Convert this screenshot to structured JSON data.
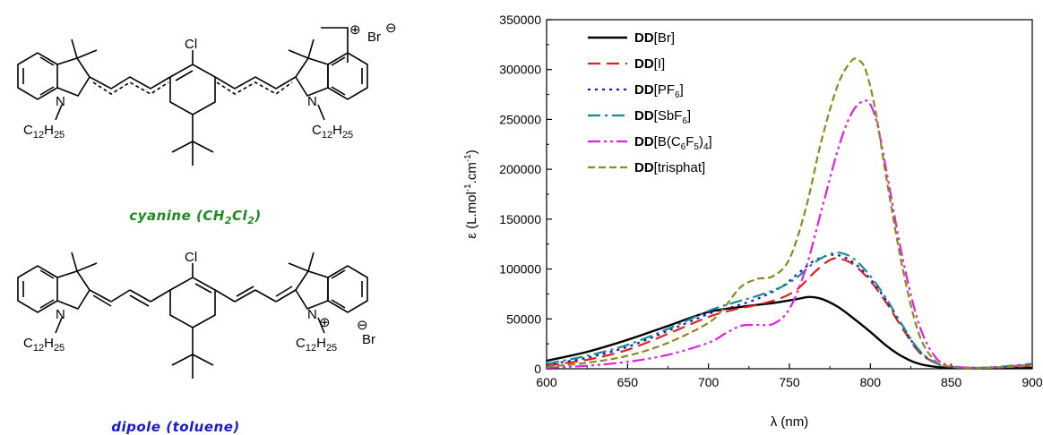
{
  "structures": {
    "cyanine": {
      "caption_pre": "cyanine (CH",
      "caption_sub1": "2",
      "caption_mid": "Cl",
      "caption_sub2": "2",
      "caption_post": ")",
      "caption_color": "#1e8a1e",
      "chloro": "Cl",
      "alkyl_c": "C",
      "alkyl_c_sub": "12",
      "alkyl_h": "H",
      "alkyl_h_sub": "25",
      "nitrogen": "N",
      "charge": "⊕",
      "counterion": "Br",
      "counterion_charge": "⊖"
    },
    "dipole": {
      "caption": "dipole (toluene)",
      "caption_color": "#1a1ad0",
      "chloro": "Cl",
      "alkyl_c": "C",
      "alkyl_c_sub": "12",
      "alkyl_h": "H",
      "alkyl_h_sub": "25",
      "nitrogen": "N",
      "charge": "⊕",
      "counterion": "Br",
      "counterion_charge": "⊖",
      "counterion_color": "#e01010"
    }
  },
  "chart_data": {
    "type": "line",
    "xlabel": "λ (nm)",
    "ylabel_pre": "ε (L.mol",
    "ylabel_sup1": "-1",
    "ylabel_mid": ".cm",
    "ylabel_sup2": "-1",
    "ylabel_post": ")",
    "xlim": [
      600,
      900
    ],
    "ylim": [
      0,
      350000
    ],
    "x_ticks": [
      600,
      650,
      700,
      750,
      800,
      850,
      900
    ],
    "y_ticks": [
      0,
      50000,
      100000,
      150000,
      200000,
      250000,
      300000,
      350000
    ],
    "legend_position": "top-left",
    "grid": false,
    "series": [
      {
        "name_bold": "DD",
        "name_rest": "[Br]",
        "sub": "",
        "suffix": "",
        "color": "#000000",
        "dash": "",
        "x": [
          600,
          625,
          650,
          675,
          700,
          720,
          740,
          755,
          762,
          770,
          780,
          790,
          800,
          810,
          820,
          830,
          840,
          850,
          870,
          900
        ],
        "y": [
          8000,
          17000,
          29000,
          43000,
          57000,
          62000,
          66000,
          70000,
          72000,
          70000,
          62000,
          50000,
          37000,
          23000,
          12000,
          5000,
          2000,
          1000,
          500,
          800
        ]
      },
      {
        "name_bold": "DD",
        "name_rest": "[I]",
        "sub": "",
        "suffix": "",
        "color": "#e02020",
        "dash": "14,7",
        "x": [
          600,
          625,
          650,
          675,
          700,
          715,
          730,
          745,
          755,
          765,
          775,
          782,
          790,
          800,
          810,
          820,
          830,
          840,
          850,
          870,
          900
        ],
        "y": [
          3000,
          9000,
          19000,
          35000,
          52000,
          59000,
          64000,
          71000,
          80000,
          96000,
          109000,
          110000,
          104000,
          88000,
          66000,
          40000,
          17000,
          6000,
          2000,
          1000,
          3000
        ]
      },
      {
        "name_bold": "DD",
        "name_rest": "[PF",
        "sub": "6",
        "suffix": "]",
        "color": "#1a1acc",
        "dash": "3,5",
        "x": [
          600,
          625,
          650,
          675,
          700,
          715,
          730,
          745,
          755,
          765,
          775,
          782,
          790,
          800,
          810,
          820,
          830,
          840,
          850,
          870,
          900
        ],
        "y": [
          4000,
          11000,
          22000,
          38000,
          55000,
          62000,
          70000,
          82000,
          95000,
          108000,
          114000,
          113000,
          106000,
          90000,
          68000,
          42000,
          18000,
          6000,
          2000,
          1000,
          4000
        ]
      },
      {
        "name_bold": "DD",
        "name_rest": "[SbF",
        "sub": "6",
        "suffix": "]",
        "color": "#1a8a8a",
        "dash": "14,5,3,5",
        "x": [
          600,
          625,
          650,
          675,
          700,
          715,
          730,
          745,
          755,
          765,
          775,
          782,
          790,
          800,
          810,
          820,
          830,
          840,
          850,
          870,
          900
        ],
        "y": [
          5000,
          13000,
          24000,
          40000,
          58000,
          66000,
          73000,
          82000,
          92000,
          106000,
          115000,
          116000,
          110000,
          93000,
          70000,
          43000,
          19000,
          6000,
          2000,
          1000,
          5000
        ]
      },
      {
        "name_bold": "DD",
        "name_rest": "[B(C",
        "sub": "6",
        "suffix": "F",
        "sub2": "5",
        "suffix2": ")",
        "sub3": "4",
        "suffix3": "]",
        "color": "#e020e0",
        "dash": "14,4,3,4,3,4",
        "x": [
          600,
          625,
          650,
          675,
          700,
          710,
          720,
          730,
          740,
          750,
          760,
          770,
          780,
          788,
          795,
          800,
          805,
          812,
          820,
          830,
          840,
          850,
          870,
          900
        ],
        "y": [
          1000,
          3000,
          7000,
          14000,
          26000,
          35000,
          43000,
          44000,
          45000,
          60000,
          100000,
          160000,
          220000,
          255000,
          268000,
          265000,
          240000,
          180000,
          110000,
          45000,
          12000,
          3000,
          1000,
          4000
        ]
      },
      {
        "name_bold": "DD",
        "name_rest": "[trisphat]",
        "sub": "",
        "suffix": "",
        "color": "#8a8a20",
        "dash": "8,4",
        "x": [
          600,
          625,
          650,
          675,
          700,
          710,
          720,
          730,
          740,
          750,
          760,
          770,
          780,
          788,
          792,
          797,
          803,
          810,
          820,
          830,
          840,
          850,
          870,
          900
        ],
        "y": [
          2000,
          6000,
          13000,
          26000,
          46000,
          62000,
          82000,
          90000,
          93000,
          110000,
          160000,
          230000,
          285000,
          308000,
          310000,
          300000,
          260000,
          190000,
          100000,
          35000,
          8000,
          2000,
          1000,
          3000
        ]
      }
    ]
  }
}
